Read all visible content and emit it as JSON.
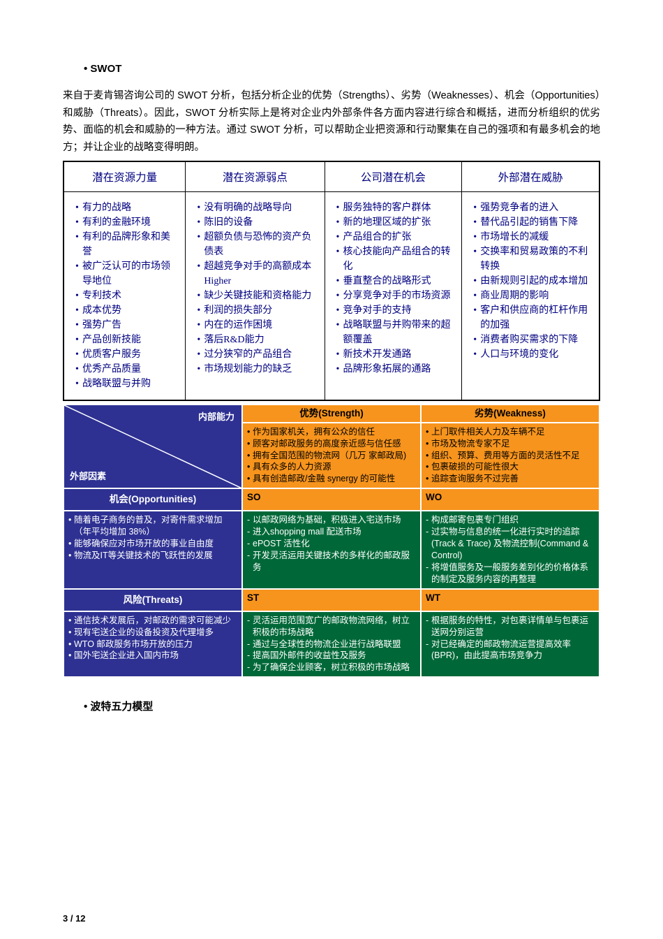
{
  "heading1": "SWOT",
  "intro": "来自于麦肯锡咨询公司的 SWOT 分析，包括分析企业的优势（Strengths）、劣势（Weaknesses）、机会（Opportunities）和威胁（Threats）。因此，SWOT 分析实际上是将对企业内外部条件各方面内容进行综合和概括，进而分析组织的优劣势、面临的机会和威胁的一种方法。通过 SWOT 分析，可以帮助企业把资源和行动聚集在自己的强项和有最多机会的地方；并让企业的战略变得明朗。",
  "swot_headers": [
    "潜在资源力量",
    "潜在资源弱点",
    "公司潜在机会",
    "外部潜在威胁"
  ],
  "swot_cols": {
    "c1": [
      "有力的战略",
      "有利的金融环境",
      "有利的品牌形象和美誉",
      "被广泛认可的市场领导地位",
      "专利技术",
      "成本优势",
      "强势广告",
      "产品创新技能",
      "优质客户服务",
      "优秀产品质量",
      "战略联盟与并购"
    ],
    "c2": [
      "没有明确的战略导向",
      "陈旧的设备",
      "超额负债与恐怖的资产负债表",
      "超越竞争对手的高额成本Higher",
      "缺少关键技能和资格能力",
      "利润的损失部分",
      "内在的运作困境",
      "落后R&D能力",
      "过分狭窄的产品组合",
      "市场规划能力的缺乏"
    ],
    "c3": [
      "服务独特的客户群体",
      "新的地理区域的扩张",
      "产品组合的扩张",
      "核心技能向产品组合的转化",
      "垂直整合的战略形式",
      "分享竞争对手的市场资源",
      "竞争对手的支持",
      "战略联盟与并购带来的超额覆盖",
      "新技术开发通路",
      "品牌形象拓展的通路"
    ],
    "c4": [
      "强势竞争者的进入",
      "替代品引起的销售下降",
      "市场增长的减缓",
      "交换率和贸易政策的不利转换",
      "由新规则引起的成本增加",
      "商业周期的影响",
      "客户和供应商的杠杆作用的加强",
      "消费者购买需求的下降",
      "人口与环境的变化"
    ]
  },
  "tows": {
    "diag_top": "内部能力",
    "diag_bot": "外部因素",
    "s_head": "优势(Strength)",
    "w_head": "劣势(Weakness)",
    "s_list": [
      "作为国家机关，拥有公众的信任",
      "顾客对邮政服务的高度亲近感与信任感",
      "拥有全国范围的物流网（几万 家邮政局)",
      "具有众多的人力资源",
      "具有创造邮政/金融 synergy 的可能性"
    ],
    "w_list": [
      "上门取件相关人力及车辆不足",
      "市场及物流专家不足",
      "组织、预算、费用等方面的灵活性不足",
      "包裹破损的可能性很大",
      "追踪查询服务不过完善"
    ],
    "o_head": "机会(Opportunities)",
    "o_list": [
      "随着电子商务的普及，对寄件需求增加（年平均增加 38%）",
      "能够确保应对市场开放的事业自由度",
      "物流及IT等关键技术的飞跃性的发展"
    ],
    "so_label": "SO",
    "so_list": [
      "以邮政网络为基础，积极进入宅送市场",
      "进入shopping mall 配送市场",
      "ePOST 活性化",
      "开发灵活运用关键技术的多样化的邮政服务"
    ],
    "wo_label": "WO",
    "wo_list": [
      "构成邮寄包裹专门组织",
      "过实物与信息的统一化进行实时的追踪(Track & Trace) 及物流控制(Command & Control)",
      "将增值服务及一般服务差别化的价格体系的制定及服务内容的再整理"
    ],
    "t_head": "风险(Threats)",
    "t_list": [
      "通信技术发展后，对邮政的需求可能减少",
      "现有宅送企业的设备投资及代理增多",
      "WTO 邮政服务市场开放的压力",
      "国外宅送企业进入国内市场"
    ],
    "st_label": "ST",
    "st_list": [
      "灵活运用范围宽广的邮政物流网络，树立积极的市场战略",
      "通过与全球性的物流企业进行战略联盟",
      "提高国外邮件的收益性及服务",
      "为了确保企业顾客，树立积极的市场战略"
    ],
    "wt_label": "WT",
    "wt_list": [
      "根据服务的特性，对包裹详情单与包裹运送网分别运营",
      "对已经确定的邮政物流运营提高效率(BPR)，由此提高市场竞争力"
    ]
  },
  "heading2": "波特五力模型",
  "pagenum": "3 / 12"
}
